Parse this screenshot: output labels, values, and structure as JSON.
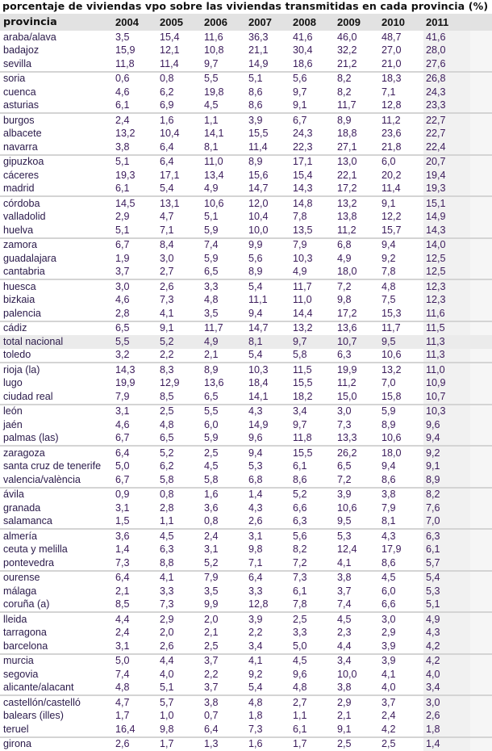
{
  "title": "porcentaje de viviendas vpo sobre las viviendas transmitidas en cada provincia (%)",
  "header": {
    "province_label": "provincia",
    "years": [
      "2004",
      "2005",
      "2006",
      "2007",
      "2008",
      "2009",
      "2010",
      "2011"
    ]
  },
  "rows": [
    {
      "provincia": "araba/alava",
      "values": [
        "3,5",
        "15,4",
        "11,6",
        "36,3",
        "41,6",
        "46,0",
        "48,7",
        "41,6"
      ]
    },
    {
      "provincia": "badajoz",
      "values": [
        "15,9",
        "12,1",
        "10,8",
        "21,1",
        "30,4",
        "32,2",
        "27,0",
        "28,0"
      ]
    },
    {
      "provincia": "sevilla",
      "values": [
        "11,8",
        "11,4",
        "9,7",
        "14,9",
        "18,6",
        "21,2",
        "21,0",
        "27,6"
      ]
    },
    {
      "provincia": "soria",
      "values": [
        "0,6",
        "0,8",
        "5,5",
        "5,1",
        "5,6",
        "8,2",
        "18,3",
        "26,8"
      ]
    },
    {
      "provincia": "cuenca",
      "values": [
        "4,6",
        "6,2",
        "19,8",
        "8,6",
        "9,7",
        "8,2",
        "7,1",
        "24,3"
      ]
    },
    {
      "provincia": "asturias",
      "values": [
        "6,1",
        "6,9",
        "4,5",
        "8,6",
        "9,1",
        "11,7",
        "12,8",
        "23,3"
      ]
    },
    {
      "provincia": "burgos",
      "values": [
        "2,4",
        "1,6",
        "1,1",
        "3,9",
        "6,7",
        "8,9",
        "11,2",
        "22,7"
      ]
    },
    {
      "provincia": "albacete",
      "values": [
        "13,2",
        "10,4",
        "14,1",
        "15,5",
        "24,3",
        "18,8",
        "23,6",
        "22,7"
      ]
    },
    {
      "provincia": "navarra",
      "values": [
        "3,8",
        "6,4",
        "8,1",
        "11,4",
        "22,3",
        "27,1",
        "21,8",
        "22,4"
      ]
    },
    {
      "provincia": "gipuzkoa",
      "values": [
        "5,1",
        "6,4",
        "11,0",
        "8,9",
        "17,1",
        "13,0",
        "6,0",
        "20,7"
      ]
    },
    {
      "provincia": "cáceres",
      "values": [
        "19,3",
        "17,1",
        "13,4",
        "15,6",
        "15,4",
        "22,1",
        "20,2",
        "19,4"
      ]
    },
    {
      "provincia": "madrid",
      "values": [
        "6,1",
        "5,4",
        "4,9",
        "14,7",
        "14,3",
        "17,2",
        "11,4",
        "19,3"
      ]
    },
    {
      "provincia": "córdoba",
      "values": [
        "14,5",
        "13,1",
        "10,6",
        "12,0",
        "14,8",
        "13,2",
        "9,1",
        "15,1"
      ]
    },
    {
      "provincia": "valladolid",
      "values": [
        "2,9",
        "4,7",
        "5,1",
        "10,4",
        "7,8",
        "13,8",
        "12,2",
        "14,9"
      ]
    },
    {
      "provincia": "huelva",
      "values": [
        "5,1",
        "7,1",
        "5,9",
        "10,0",
        "13,5",
        "11,2",
        "15,7",
        "14,3"
      ]
    },
    {
      "provincia": "zamora",
      "values": [
        "6,7",
        "8,4",
        "7,4",
        "9,9",
        "7,9",
        "6,8",
        "9,4",
        "14,0"
      ]
    },
    {
      "provincia": "guadalajara",
      "values": [
        "1,9",
        "3,0",
        "5,9",
        "5,6",
        "10,3",
        "4,9",
        "9,2",
        "12,5"
      ]
    },
    {
      "provincia": "cantabria",
      "values": [
        "3,7",
        "2,7",
        "6,5",
        "8,9",
        "4,9",
        "18,0",
        "7,8",
        "12,5"
      ]
    },
    {
      "provincia": "huesca",
      "values": [
        "3,0",
        "2,6",
        "3,3",
        "5,4",
        "11,7",
        "7,2",
        "4,8",
        "12,3"
      ]
    },
    {
      "provincia": "bizkaia",
      "values": [
        "4,6",
        "7,3",
        "4,8",
        "11,1",
        "11,0",
        "9,8",
        "7,5",
        "12,3"
      ]
    },
    {
      "provincia": "palencia",
      "values": [
        "2,8",
        "4,1",
        "3,5",
        "9,4",
        "14,4",
        "17,2",
        "15,3",
        "11,6"
      ]
    },
    {
      "provincia": "cádiz",
      "values": [
        "6,5",
        "9,1",
        "11,7",
        "14,7",
        "13,2",
        "13,6",
        "11,7",
        "11,5"
      ]
    },
    {
      "provincia": "total nacional",
      "values": [
        "5,5",
        "5,2",
        "4,9",
        "8,1",
        "9,7",
        "10,7",
        "9,5",
        "11,3"
      ],
      "total": true
    },
    {
      "provincia": "toledo",
      "values": [
        "3,2",
        "2,2",
        "2,1",
        "5,4",
        "5,8",
        "6,3",
        "10,6",
        "11,3"
      ]
    },
    {
      "provincia": "rioja (la)",
      "values": [
        "14,3",
        "8,3",
        "8,9",
        "10,3",
        "11,5",
        "19,9",
        "13,2",
        "11,0"
      ]
    },
    {
      "provincia": "lugo",
      "values": [
        "19,9",
        "12,9",
        "13,6",
        "18,4",
        "15,5",
        "11,2",
        "7,0",
        "10,9"
      ]
    },
    {
      "provincia": "ciudad real",
      "values": [
        "7,9",
        "8,5",
        "6,5",
        "14,1",
        "18,2",
        "15,0",
        "15,8",
        "10,7"
      ]
    },
    {
      "provincia": "león",
      "values": [
        "3,1",
        "2,5",
        "5,5",
        "4,3",
        "3,4",
        "3,0",
        "5,9",
        "10,3"
      ]
    },
    {
      "provincia": "jaén",
      "values": [
        "4,6",
        "4,8",
        "6,0",
        "14,9",
        "9,7",
        "7,3",
        "8,9",
        "9,6"
      ]
    },
    {
      "provincia": "palmas (las)",
      "values": [
        "6,7",
        "6,5",
        "5,9",
        "9,6",
        "11,8",
        "13,3",
        "10,6",
        "9,4"
      ]
    },
    {
      "provincia": "zaragoza",
      "values": [
        "6,4",
        "5,2",
        "2,5",
        "9,4",
        "15,5",
        "26,2",
        "18,0",
        "9,2"
      ]
    },
    {
      "provincia": "santa cruz de tenerife",
      "values": [
        "5,0",
        "6,2",
        "4,5",
        "5,3",
        "6,1",
        "6,5",
        "9,4",
        "9,1"
      ]
    },
    {
      "provincia": "valencia/valència",
      "values": [
        "6,7",
        "5,8",
        "5,8",
        "6,8",
        "8,6",
        "7,2",
        "8,6",
        "8,9"
      ]
    },
    {
      "provincia": "ávila",
      "values": [
        "0,9",
        "0,8",
        "1,6",
        "1,4",
        "5,2",
        "3,9",
        "3,8",
        "8,2"
      ]
    },
    {
      "provincia": "granada",
      "values": [
        "3,1",
        "2,8",
        "3,6",
        "4,3",
        "6,6",
        "10,6",
        "7,9",
        "7,6"
      ]
    },
    {
      "provincia": "salamanca",
      "values": [
        "1,5",
        "1,1",
        "0,8",
        "2,6",
        "6,3",
        "9,5",
        "8,1",
        "7,0"
      ]
    },
    {
      "provincia": "almería",
      "values": [
        "3,6",
        "4,5",
        "2,4",
        "3,1",
        "5,6",
        "5,3",
        "4,3",
        "6,3"
      ]
    },
    {
      "provincia": "ceuta y melilla",
      "values": [
        "1,4",
        "6,3",
        "3,1",
        "9,8",
        "8,2",
        "12,4",
        "17,9",
        "6,1"
      ]
    },
    {
      "provincia": "pontevedra",
      "values": [
        "7,3",
        "8,8",
        "5,2",
        "7,1",
        "7,2",
        "4,1",
        "8,6",
        "5,7"
      ]
    },
    {
      "provincia": "ourense",
      "values": [
        "6,4",
        "4,1",
        "7,9",
        "6,4",
        "7,3",
        "3,8",
        "4,5",
        "5,4"
      ]
    },
    {
      "provincia": "málaga",
      "values": [
        "2,1",
        "3,3",
        "3,5",
        "3,3",
        "6,1",
        "3,7",
        "6,0",
        "5,3"
      ]
    },
    {
      "provincia": "coruña (a)",
      "values": [
        "8,5",
        "7,3",
        "9,9",
        "12,8",
        "7,8",
        "7,4",
        "6,6",
        "5,1"
      ]
    },
    {
      "provincia": "lleida",
      "values": [
        "4,4",
        "2,9",
        "2,0",
        "3,9",
        "2,5",
        "4,5",
        "3,0",
        "4,9"
      ]
    },
    {
      "provincia": "tarragona",
      "values": [
        "2,4",
        "2,0",
        "2,1",
        "2,2",
        "3,3",
        "2,3",
        "2,9",
        "4,3"
      ]
    },
    {
      "provincia": "barcelona",
      "values": [
        "3,1",
        "2,6",
        "2,5",
        "3,4",
        "5,0",
        "4,4",
        "3,9",
        "4,2"
      ]
    },
    {
      "provincia": "murcia",
      "values": [
        "5,0",
        "4,4",
        "3,7",
        "4,1",
        "4,5",
        "3,4",
        "3,9",
        "4,2"
      ]
    },
    {
      "provincia": "segovia",
      "values": [
        "7,4",
        "4,0",
        "2,2",
        "9,2",
        "9,6",
        "10,0",
        "4,1",
        "4,0"
      ]
    },
    {
      "provincia": "alicante/alacant",
      "values": [
        "4,8",
        "5,1",
        "3,7",
        "5,4",
        "4,8",
        "3,8",
        "4,0",
        "3,4"
      ]
    },
    {
      "provincia": "castellón/castelló",
      "values": [
        "4,7",
        "5,7",
        "3,8",
        "4,8",
        "2,7",
        "2,9",
        "3,7",
        "3,0"
      ]
    },
    {
      "provincia": "balears (illes)",
      "values": [
        "1,7",
        "1,0",
        "0,7",
        "1,8",
        "1,1",
        "2,1",
        "2,4",
        "2,6"
      ]
    },
    {
      "provincia": "teruel",
      "values": [
        "16,4",
        "9,8",
        "6,4",
        "7,3",
        "6,1",
        "9,1",
        "4,2",
        "1,8"
      ]
    },
    {
      "provincia": "girona",
      "values": [
        "2,6",
        "1,7",
        "1,3",
        "1,6",
        "1,7",
        "2,5",
        "2,5",
        "1,4"
      ]
    }
  ],
  "colors": {
    "header_bg": "#e2e2e2",
    "highlight_col_bg": "#f1f1f1",
    "total_row_bg": "#ebebeb",
    "group_separator": "#d4d4d4",
    "text": "#3b1b5b"
  }
}
